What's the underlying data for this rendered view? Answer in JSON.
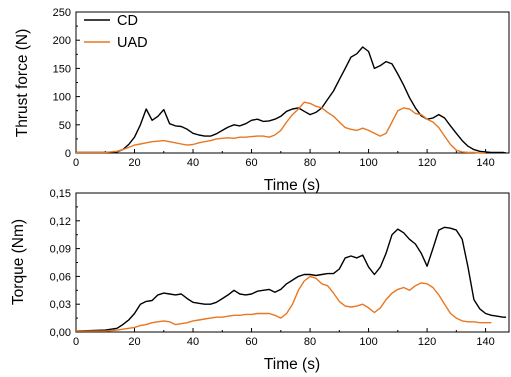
{
  "chart_data": [
    {
      "type": "line",
      "title": "",
      "xlabel": "Time (s)",
      "ylabel": "Thrust force (N)",
      "xlim": [
        0,
        148
      ],
      "ylim": [
        0,
        250
      ],
      "xticks": [
        0,
        20,
        40,
        60,
        80,
        100,
        120,
        140
      ],
      "yticks": [
        0,
        50,
        100,
        150,
        200,
        250
      ],
      "xtick_labels": [
        "0",
        "20",
        "40",
        "60",
        "80",
        "100",
        "120",
        "140"
      ],
      "ytick_labels": [
        "0",
        "50",
        "100",
        "150",
        "200",
        "250"
      ],
      "grid": false,
      "legend": "top-left",
      "series": [
        {
          "name": "CD",
          "color": "#000000",
          "x": [
            0,
            10,
            14,
            16,
            18,
            20,
            22,
            24,
            26,
            28,
            30,
            32,
            34,
            36,
            38,
            40,
            42,
            44,
            46,
            48,
            50,
            52,
            54,
            56,
            58,
            60,
            62,
            64,
            66,
            68,
            70,
            72,
            74,
            76,
            78,
            80,
            82,
            84,
            86,
            88,
            90,
            92,
            94,
            96,
            98,
            100,
            102,
            104,
            106,
            108,
            110,
            112,
            114,
            116,
            118,
            120,
            122,
            124,
            126,
            128,
            130,
            132,
            134,
            136,
            138,
            140,
            142,
            144,
            146,
            147
          ],
          "y": [
            1,
            1,
            2,
            6,
            15,
            28,
            50,
            78,
            58,
            65,
            77,
            52,
            48,
            47,
            42,
            35,
            32,
            30,
            30,
            34,
            40,
            46,
            50,
            48,
            52,
            58,
            60,
            56,
            57,
            60,
            65,
            74,
            78,
            80,
            74,
            68,
            72,
            80,
            95,
            110,
            130,
            150,
            170,
            176,
            188,
            180,
            150,
            155,
            162,
            158,
            140,
            120,
            98,
            80,
            66,
            60,
            62,
            68,
            62,
            48,
            35,
            22,
            12,
            6,
            3,
            2,
            1,
            1,
            1,
            0
          ]
        },
        {
          "name": "UAD",
          "color": "#E87722",
          "x": [
            0,
            10,
            14,
            16,
            18,
            20,
            22,
            24,
            26,
            28,
            30,
            32,
            34,
            36,
            38,
            40,
            42,
            44,
            46,
            48,
            50,
            52,
            54,
            56,
            58,
            60,
            62,
            64,
            66,
            68,
            70,
            72,
            74,
            76,
            78,
            80,
            82,
            84,
            86,
            88,
            90,
            92,
            94,
            96,
            98,
            100,
            102,
            104,
            106,
            108,
            110,
            112,
            114,
            116,
            118,
            120,
            122,
            124,
            126,
            128,
            130,
            132,
            134,
            136,
            138,
            140
          ],
          "y": [
            1,
            1,
            3,
            6,
            10,
            14,
            16,
            18,
            20,
            21,
            22,
            20,
            18,
            16,
            14,
            15,
            18,
            20,
            22,
            25,
            26,
            27,
            26,
            28,
            28,
            29,
            30,
            30,
            28,
            32,
            40,
            55,
            68,
            78,
            90,
            88,
            83,
            80,
            72,
            65,
            55,
            45,
            42,
            40,
            44,
            40,
            35,
            30,
            35,
            55,
            75,
            80,
            78,
            70,
            68,
            60,
            55,
            45,
            30,
            15,
            5,
            2,
            1,
            1,
            0,
            0
          ]
        }
      ]
    },
    {
      "type": "line",
      "title": "",
      "xlabel": "Time (s)",
      "ylabel": "Torque (Nm)",
      "xlim": [
        0,
        148
      ],
      "ylim": [
        0,
        0.15
      ],
      "xticks": [
        0,
        20,
        40,
        60,
        80,
        100,
        120,
        140
      ],
      "yticks": [
        0,
        0.03,
        0.06,
        0.09,
        0.12,
        0.15
      ],
      "xtick_labels": [
        "0",
        "20",
        "40",
        "60",
        "80",
        "100",
        "120",
        "140"
      ],
      "ytick_labels": [
        "0,00",
        "0,03",
        "0,06",
        "0,09",
        "0,12",
        "0,15"
      ],
      "grid": false,
      "legend": "none",
      "series": [
        {
          "name": "CD",
          "color": "#000000",
          "x": [
            0,
            10,
            14,
            16,
            18,
            20,
            22,
            24,
            26,
            28,
            30,
            32,
            34,
            36,
            38,
            40,
            42,
            44,
            46,
            48,
            50,
            52,
            54,
            56,
            58,
            60,
            62,
            64,
            66,
            68,
            70,
            72,
            74,
            76,
            78,
            80,
            82,
            84,
            86,
            88,
            90,
            92,
            94,
            96,
            98,
            100,
            102,
            104,
            106,
            108,
            110,
            112,
            114,
            116,
            118,
            120,
            122,
            124,
            126,
            128,
            130,
            132,
            134,
            136,
            138,
            140,
            142,
            144,
            146,
            147
          ],
          "y": [
            0.001,
            0.002,
            0.004,
            0.008,
            0.013,
            0.02,
            0.03,
            0.033,
            0.034,
            0.04,
            0.042,
            0.041,
            0.04,
            0.041,
            0.036,
            0.032,
            0.031,
            0.03,
            0.03,
            0.032,
            0.036,
            0.04,
            0.045,
            0.041,
            0.04,
            0.041,
            0.044,
            0.045,
            0.046,
            0.043,
            0.046,
            0.052,
            0.056,
            0.06,
            0.062,
            0.062,
            0.061,
            0.062,
            0.063,
            0.063,
            0.068,
            0.08,
            0.082,
            0.08,
            0.083,
            0.07,
            0.062,
            0.07,
            0.085,
            0.105,
            0.111,
            0.107,
            0.1,
            0.095,
            0.085,
            0.071,
            0.09,
            0.11,
            0.113,
            0.112,
            0.11,
            0.1,
            0.07,
            0.035,
            0.025,
            0.02,
            0.018,
            0.017,
            0.016,
            0.016
          ]
        },
        {
          "name": "UAD",
          "color": "#E87722",
          "x": [
            0,
            10,
            14,
            16,
            18,
            20,
            22,
            24,
            26,
            28,
            30,
            32,
            34,
            36,
            38,
            40,
            42,
            44,
            46,
            48,
            50,
            52,
            54,
            56,
            58,
            60,
            62,
            64,
            66,
            68,
            70,
            72,
            74,
            76,
            78,
            80,
            82,
            84,
            86,
            88,
            90,
            92,
            94,
            96,
            98,
            100,
            102,
            104,
            106,
            108,
            110,
            112,
            114,
            116,
            118,
            120,
            122,
            124,
            126,
            128,
            130,
            132,
            134,
            136,
            138,
            140,
            142
          ],
          "y": [
            0.001,
            0.001,
            0.002,
            0.003,
            0.004,
            0.005,
            0.007,
            0.008,
            0.01,
            0.011,
            0.012,
            0.011,
            0.008,
            0.009,
            0.01,
            0.012,
            0.013,
            0.014,
            0.015,
            0.016,
            0.016,
            0.017,
            0.018,
            0.018,
            0.019,
            0.019,
            0.02,
            0.02,
            0.02,
            0.018,
            0.015,
            0.02,
            0.03,
            0.045,
            0.055,
            0.06,
            0.058,
            0.052,
            0.05,
            0.042,
            0.033,
            0.028,
            0.027,
            0.028,
            0.03,
            0.026,
            0.021,
            0.026,
            0.035,
            0.042,
            0.046,
            0.048,
            0.045,
            0.05,
            0.053,
            0.052,
            0.048,
            0.04,
            0.03,
            0.02,
            0.015,
            0.012,
            0.011,
            0.011,
            0.01,
            0.01,
            0.01
          ]
        }
      ]
    }
  ]
}
